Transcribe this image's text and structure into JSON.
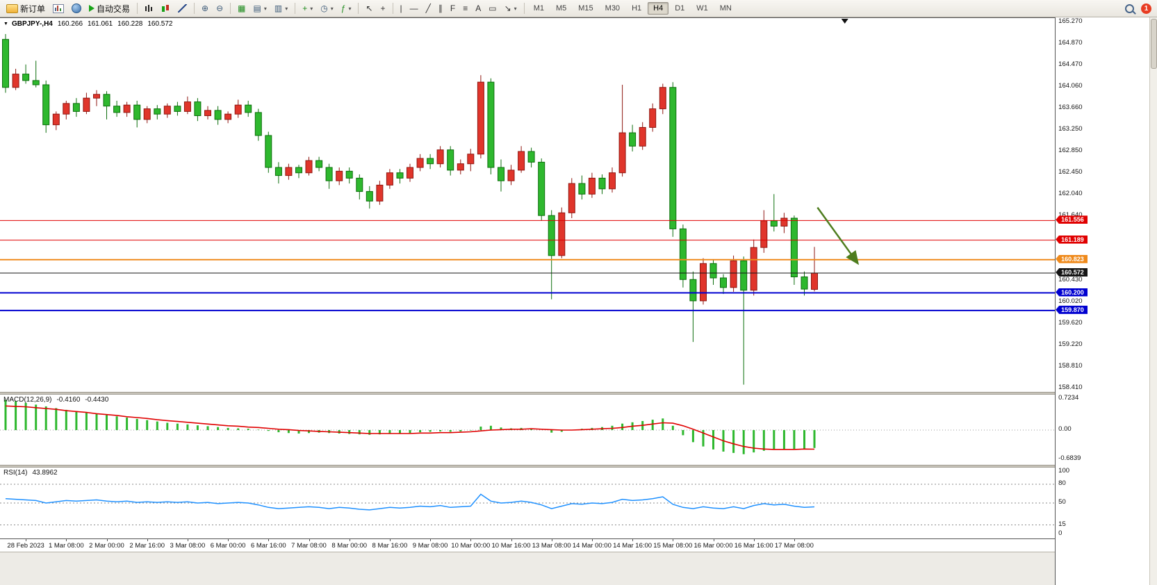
{
  "toolbar": {
    "new_order": "新订单",
    "auto_trading": "自动交易",
    "timeframes": [
      "M1",
      "M5",
      "M15",
      "M30",
      "H1",
      "H4",
      "D1",
      "W1",
      "MN"
    ],
    "active_timeframe": "H4",
    "notification_badge": "1"
  },
  "icons": {
    "chart_collapse": "▼",
    "tile_windows": "▦",
    "indicators_window": "▤",
    "data_window": "▥",
    "new_chart_plus": "+",
    "period_clock": "◷",
    "indicator_fx": "ƒ",
    "cursor": "↖",
    "crosshair": "+",
    "vline": "|",
    "hline": "—",
    "trendline": "╱",
    "channel": "∥",
    "fibonacci": "F",
    "levels": "≡",
    "text_tool": "A",
    "label_tool": "▭",
    "arrows_tool": "↘",
    "caret": "▾",
    "zoom_in": "⊕",
    "zoom_out": "⊖"
  },
  "chart": {
    "symbol": "GBPJPY-,H4",
    "open": "160.266",
    "high": "161.061",
    "low": "160.228",
    "close": "160.572",
    "price_axis_labels": [
      "165.270",
      "164.870",
      "164.470",
      "164.060",
      "163.660",
      "163.250",
      "162.850",
      "162.450",
      "162.040",
      "161.640",
      "160.430",
      "160.020",
      "159.620",
      "159.220",
      "158.810",
      "158.410"
    ],
    "levels": [
      {
        "label": "161.556",
        "value": 161.556,
        "color": "#e00000",
        "line_width": 1
      },
      {
        "label": "161.189",
        "value": 161.189,
        "color": "#e00000",
        "line_width": 1
      },
      {
        "label": "160.823",
        "value": 160.823,
        "color": "#ef8a1c",
        "line_width": 2
      },
      {
        "label": "160.572",
        "value": 160.572,
        "color": "#151515",
        "line_width": 1
      },
      {
        "label": "160.200",
        "value": 160.2,
        "color": "#0000d0",
        "line_width": 2
      },
      {
        "label": "159.870",
        "value": 159.87,
        "color": "#0000d0",
        "line_width": 2
      }
    ]
  },
  "macd": {
    "label": "MACD(12,26,9)",
    "value_main": "-0.4160",
    "value_signal": "-0.4430",
    "axis_labels": [
      {
        "text": "0.7234",
        "value": 0.7234
      },
      {
        "text": "0.00",
        "value": 0
      },
      {
        "text": "-0.6839",
        "value": -0.6839
      }
    ]
  },
  "rsi": {
    "label": "RSI(14)",
    "value": "43.8962",
    "levels": [
      80,
      50,
      15
    ],
    "axis_labels": [
      {
        "text": "100",
        "value": 100
      },
      {
        "text": "80",
        "value": 80
      },
      {
        "text": "50",
        "value": 50
      },
      {
        "text": "15",
        "value": 15
      },
      {
        "text": "0",
        "value": 0
      }
    ]
  },
  "chart_data": {
    "type": "candlestick",
    "symbol": "GBPJPY",
    "timeframe": "H4",
    "ylim": [
      158.41,
      165.27
    ],
    "up_color": "#e0352b",
    "down_color": "#2eb82e",
    "up_stroke": "#8f1610",
    "down_stroke": "#0c6e0c",
    "macd_color": "#2eb82e",
    "signal_color": "#e00000",
    "rsi_color": "#1e90ff",
    "shift_marker_index": 83,
    "annotation_arrow": {
      "from_index": 80.3,
      "from_price": 161.8,
      "to_index": 84.3,
      "to_price": 160.75,
      "color": "#4e7d1e"
    },
    "candles": [
      [
        164.95,
        165.05,
        163.95,
        164.05
      ],
      [
        164.05,
        164.4,
        164.0,
        164.3
      ],
      [
        164.3,
        164.48,
        164.12,
        164.18
      ],
      [
        164.18,
        164.55,
        164.05,
        164.1
      ],
      [
        164.1,
        164.18,
        163.2,
        163.35
      ],
      [
        163.35,
        163.6,
        163.25,
        163.55
      ],
      [
        163.55,
        163.8,
        163.45,
        163.75
      ],
      [
        163.75,
        163.85,
        163.5,
        163.6
      ],
      [
        163.6,
        163.95,
        163.55,
        163.85
      ],
      [
        163.85,
        164.0,
        163.7,
        163.92
      ],
      [
        163.92,
        163.98,
        163.45,
        163.7
      ],
      [
        163.7,
        163.8,
        163.5,
        163.58
      ],
      [
        163.58,
        163.78,
        163.5,
        163.72
      ],
      [
        163.72,
        163.8,
        163.3,
        163.45
      ],
      [
        163.45,
        163.7,
        163.38,
        163.65
      ],
      [
        163.65,
        163.72,
        163.45,
        163.55
      ],
      [
        163.55,
        163.75,
        163.48,
        163.7
      ],
      [
        163.7,
        163.78,
        163.52,
        163.6
      ],
      [
        163.6,
        163.88,
        163.55,
        163.78
      ],
      [
        163.78,
        163.85,
        163.42,
        163.52
      ],
      [
        163.52,
        163.7,
        163.45,
        163.62
      ],
      [
        163.62,
        163.7,
        163.35,
        163.45
      ],
      [
        163.45,
        163.6,
        163.38,
        163.55
      ],
      [
        163.55,
        163.82,
        163.48,
        163.72
      ],
      [
        163.72,
        163.8,
        163.5,
        163.58
      ],
      [
        163.58,
        163.65,
        163.05,
        163.15
      ],
      [
        163.15,
        163.22,
        162.45,
        162.55
      ],
      [
        162.55,
        162.65,
        162.25,
        162.4
      ],
      [
        162.4,
        162.62,
        162.32,
        162.55
      ],
      [
        162.55,
        162.6,
        162.35,
        162.45
      ],
      [
        162.45,
        162.75,
        162.4,
        162.68
      ],
      [
        162.68,
        162.75,
        162.48,
        162.55
      ],
      [
        162.55,
        162.62,
        162.15,
        162.3
      ],
      [
        162.3,
        162.55,
        162.22,
        162.48
      ],
      [
        162.48,
        162.55,
        162.25,
        162.35
      ],
      [
        162.35,
        162.42,
        161.95,
        162.1
      ],
      [
        162.1,
        162.2,
        161.78,
        161.92
      ],
      [
        161.92,
        162.3,
        161.85,
        162.22
      ],
      [
        162.22,
        162.52,
        162.15,
        162.45
      ],
      [
        162.45,
        162.52,
        162.25,
        162.35
      ],
      [
        162.35,
        162.62,
        162.28,
        162.55
      ],
      [
        162.55,
        162.8,
        162.48,
        162.72
      ],
      [
        162.72,
        162.8,
        162.52,
        162.62
      ],
      [
        162.62,
        162.95,
        162.55,
        162.88
      ],
      [
        162.88,
        162.95,
        162.4,
        162.5
      ],
      [
        162.5,
        162.7,
        162.42,
        162.62
      ],
      [
        162.62,
        162.9,
        162.48,
        162.8
      ],
      [
        162.8,
        164.28,
        162.72,
        164.15
      ],
      [
        164.15,
        164.22,
        162.42,
        162.55
      ],
      [
        162.55,
        162.7,
        162.1,
        162.3
      ],
      [
        162.3,
        162.6,
        162.22,
        162.5
      ],
      [
        162.5,
        162.95,
        162.45,
        162.85
      ],
      [
        162.85,
        162.92,
        162.55,
        162.65
      ],
      [
        162.65,
        162.72,
        161.55,
        161.65
      ],
      [
        161.65,
        161.75,
        160.08,
        160.9
      ],
      [
        160.9,
        161.8,
        160.85,
        161.7
      ],
      [
        161.7,
        162.35,
        161.6,
        162.25
      ],
      [
        162.25,
        162.4,
        161.95,
        162.05
      ],
      [
        162.05,
        162.45,
        161.98,
        162.35
      ],
      [
        162.35,
        162.42,
        162.05,
        162.15
      ],
      [
        162.15,
        162.55,
        162.08,
        162.45
      ],
      [
        162.45,
        164.1,
        162.38,
        163.2
      ],
      [
        163.2,
        163.35,
        162.85,
        162.95
      ],
      [
        162.95,
        163.4,
        162.88,
        163.3
      ],
      [
        163.3,
        163.75,
        163.22,
        163.65
      ],
      [
        163.65,
        164.12,
        163.55,
        164.05
      ],
      [
        164.05,
        164.15,
        161.25,
        161.4
      ],
      [
        161.4,
        161.48,
        160.3,
        160.45
      ],
      [
        160.45,
        160.6,
        159.28,
        160.05
      ],
      [
        160.05,
        160.85,
        159.98,
        160.75
      ],
      [
        160.75,
        160.82,
        160.35,
        160.48
      ],
      [
        160.48,
        160.55,
        160.18,
        160.3
      ],
      [
        160.3,
        160.9,
        160.22,
        160.8
      ],
      [
        160.8,
        160.88,
        158.48,
        160.25
      ],
      [
        160.25,
        161.2,
        160.15,
        161.05
      ],
      [
        161.05,
        161.75,
        160.95,
        161.55
      ],
      [
        161.55,
        162.05,
        161.35,
        161.45
      ],
      [
        161.45,
        161.7,
        161.32,
        161.6
      ],
      [
        161.6,
        161.65,
        160.35,
        160.5
      ],
      [
        160.5,
        160.6,
        160.15,
        160.27
      ],
      [
        160.266,
        161.061,
        160.228,
        160.572
      ]
    ],
    "x_labels": [
      {
        "text": "28 Feb 2023",
        "index": 2
      },
      {
        "text": "1 Mar 08:00",
        "index": 6
      },
      {
        "text": "2 Mar 00:00",
        "index": 10
      },
      {
        "text": "2 Mar 16:00",
        "index": 14
      },
      {
        "text": "3 Mar 08:00",
        "index": 18
      },
      {
        "text": "6 Mar 00:00",
        "index": 22
      },
      {
        "text": "6 Mar 16:00",
        "index": 26
      },
      {
        "text": "7 Mar 08:00",
        "index": 30
      },
      {
        "text": "8 Mar 00:00",
        "index": 34
      },
      {
        "text": "8 Mar 16:00",
        "index": 38
      },
      {
        "text": "9 Mar 08:00",
        "index": 42
      },
      {
        "text": "10 Mar 00:00",
        "index": 46
      },
      {
        "text": "10 Mar 16:00",
        "index": 50
      },
      {
        "text": "13 Mar 08:00",
        "index": 54
      },
      {
        "text": "14 Mar 00:00",
        "index": 58
      },
      {
        "text": "14 Mar 16:00",
        "index": 62
      },
      {
        "text": "15 Mar 08:00",
        "index": 66
      },
      {
        "text": "16 Mar 00:00",
        "index": 70
      },
      {
        "text": "16 Mar 16:00",
        "index": 74
      },
      {
        "text": "17 Mar 08:00",
        "index": 78
      }
    ],
    "macd_histogram": [
      0.7,
      0.67,
      0.63,
      0.59,
      0.55,
      0.51,
      0.47,
      0.44,
      0.41,
      0.38,
      0.35,
      0.32,
      0.29,
      0.26,
      0.23,
      0.2,
      0.17,
      0.15,
      0.13,
      0.11,
      0.09,
      0.07,
      0.05,
      0.04,
      0.03,
      0.01,
      -0.02,
      -0.05,
      -0.07,
      -0.08,
      -0.07,
      -0.06,
      -0.07,
      -0.08,
      -0.09,
      -0.1,
      -0.11,
      -0.1,
      -0.09,
      -0.08,
      -0.07,
      -0.05,
      -0.04,
      -0.03,
      -0.04,
      -0.03,
      -0.01,
      0.08,
      0.1,
      0.06,
      0.04,
      0.05,
      0.04,
      0.0,
      -0.06,
      -0.04,
      0.0,
      0.03,
      0.05,
      0.07,
      0.1,
      0.15,
      0.18,
      0.21,
      0.24,
      0.27,
      0.1,
      -0.12,
      -0.28,
      -0.38,
      -0.45,
      -0.5,
      -0.53,
      -0.56,
      -0.52,
      -0.48,
      -0.46,
      -0.45,
      -0.44,
      -0.43,
      -0.416
    ],
    "macd_signal": [
      0.56,
      0.55,
      0.54,
      0.52,
      0.5,
      0.48,
      0.45,
      0.43,
      0.41,
      0.38,
      0.36,
      0.34,
      0.31,
      0.29,
      0.27,
      0.24,
      0.22,
      0.2,
      0.18,
      0.16,
      0.14,
      0.12,
      0.1,
      0.09,
      0.07,
      0.06,
      0.04,
      0.02,
      0.01,
      -0.01,
      -0.02,
      -0.03,
      -0.04,
      -0.05,
      -0.06,
      -0.07,
      -0.08,
      -0.08,
      -0.08,
      -0.08,
      -0.08,
      -0.07,
      -0.07,
      -0.06,
      -0.06,
      -0.05,
      -0.04,
      -0.02,
      0.0,
      0.01,
      0.02,
      0.02,
      0.03,
      0.02,
      0.01,
      0.0,
      0.0,
      0.01,
      0.02,
      0.03,
      0.04,
      0.06,
      0.09,
      0.11,
      0.14,
      0.17,
      0.16,
      0.1,
      0.02,
      -0.07,
      -0.16,
      -0.25,
      -0.32,
      -0.38,
      -0.42,
      -0.44,
      -0.45,
      -0.45,
      -0.45,
      -0.44,
      -0.443
    ],
    "rsi": [
      57,
      56,
      55,
      54,
      50,
      52,
      54,
      53,
      54,
      55,
      53,
      52,
      53,
      51,
      52,
      51,
      52,
      51,
      52,
      50,
      51,
      49,
      50,
      51,
      50,
      47,
      43,
      41,
      42,
      43,
      44,
      43,
      41,
      43,
      42,
      40,
      39,
      41,
      43,
      42,
      43,
      45,
      44,
      46,
      43,
      44,
      45,
      64,
      53,
      50,
      51,
      53,
      51,
      47,
      41,
      45,
      49,
      48,
      50,
      49,
      51,
      56,
      54,
      55,
      57,
      60,
      48,
      43,
      41,
      44,
      42,
      41,
      44,
      41,
      46,
      49,
      47,
      48,
      45,
      43,
      43.8962
    ]
  }
}
